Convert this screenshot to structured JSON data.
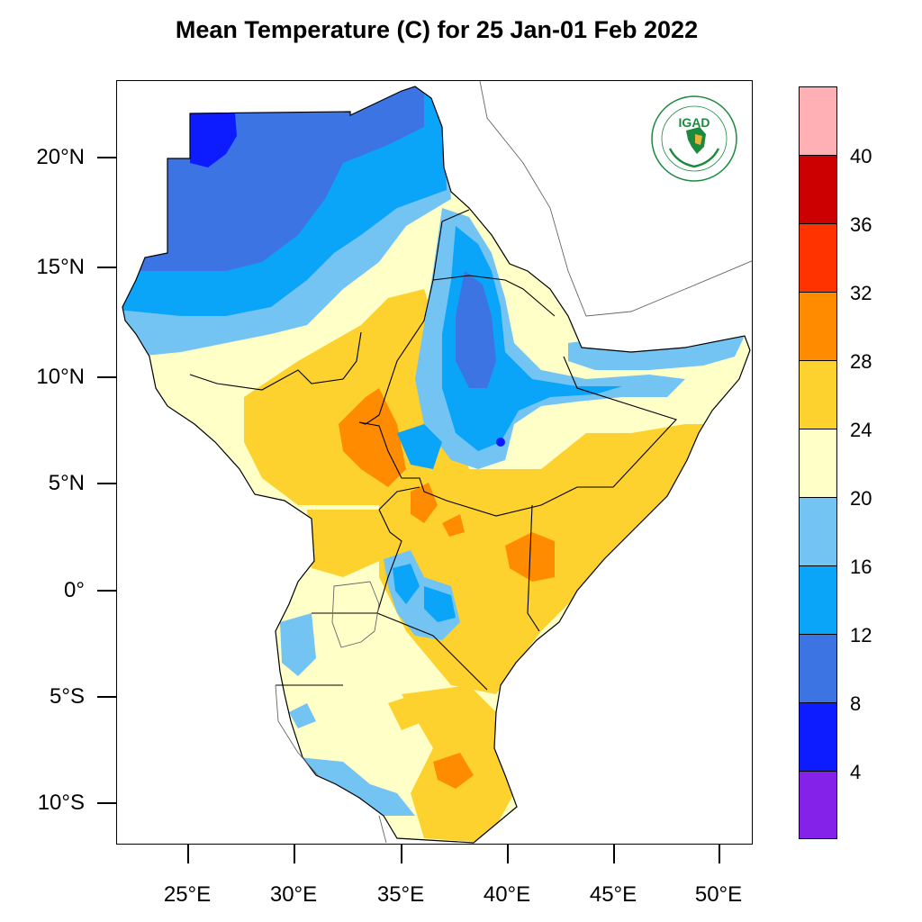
{
  "title": "Mean Temperature (C) for 25 Jan-01 Feb 2022",
  "axes": {
    "lat_labels": [
      "20°N",
      "15°N",
      "10°N",
      "5°N",
      "0°",
      "5°S",
      "10°S"
    ],
    "lon_labels": [
      "25°E",
      "30°E",
      "35°E",
      "40°E",
      "45°E",
      "50°E"
    ]
  },
  "colorbar": {
    "labels": [
      "40",
      "36",
      "32",
      "28",
      "24",
      "20",
      "16",
      "12",
      "8",
      "4"
    ],
    "colors": [
      "#ffb0b4",
      "#cc0000",
      "#ff3300",
      "#ff8c00",
      "#fdd12e",
      "#ffffc8",
      "#73c4f2",
      "#0aa5f8",
      "#3c74e4",
      "#0d1cff",
      "#8422ea"
    ]
  },
  "logo": {
    "name": "IGAD",
    "ring_text": "INTERGOVERNMENTAL AUTHORITY ON DEVELOPMENT",
    "ring_text_fr": "AUTORITÉ INTERGOUVERNEMENTALE POUR LE DÉVELOPPEMENT",
    "color": "#1c8a3c"
  }
}
